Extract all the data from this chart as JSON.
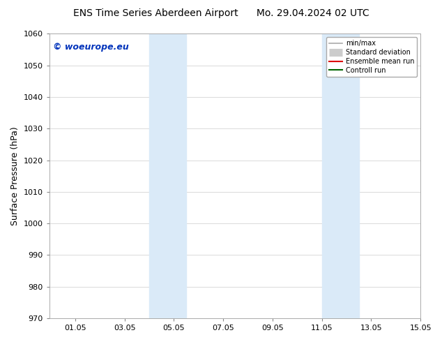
{
  "title_left": "ENS Time Series Aberdeen Airport",
  "title_right": "Mo. 29.04.2024 02 UTC",
  "ylabel": "Surface Pressure (hPa)",
  "xlim": [
    0,
    15.05
  ],
  "ylim": [
    970,
    1060
  ],
  "yticks": [
    970,
    980,
    990,
    1000,
    1010,
    1020,
    1030,
    1040,
    1050,
    1060
  ],
  "xticks": [
    1.05,
    3.05,
    5.05,
    7.05,
    9.05,
    11.05,
    13.05,
    15.05
  ],
  "xticklabels": [
    "01.05",
    "03.05",
    "05.05",
    "07.05",
    "09.05",
    "11.05",
    "13.05",
    "15.05"
  ],
  "shaded_bands": [
    {
      "xmin": 4.05,
      "xmax": 5.55,
      "color": "#daeaf8"
    },
    {
      "xmin": 11.05,
      "xmax": 12.55,
      "color": "#daeaf8"
    }
  ],
  "watermark_text": "© woeurope.eu",
  "watermark_color": "#0033bb",
  "legend_entries": [
    {
      "label": "min/max",
      "color": "#aaaaaa",
      "lw": 1.2,
      "style": "line_with_bar"
    },
    {
      "label": "Standard deviation",
      "color": "#cccccc",
      "lw": 8,
      "style": "thick"
    },
    {
      "label": "Ensemble mean run",
      "color": "#dd0000",
      "lw": 1.5,
      "style": "line"
    },
    {
      "label": "Controll run",
      "color": "#006600",
      "lw": 1.5,
      "style": "line"
    }
  ],
  "bg_color": "#ffffff",
  "grid_color": "#cccccc",
  "title_fontsize": 10,
  "tick_fontsize": 8,
  "ylabel_fontsize": 9,
  "watermark_fontsize": 9,
  "legend_fontsize": 7
}
